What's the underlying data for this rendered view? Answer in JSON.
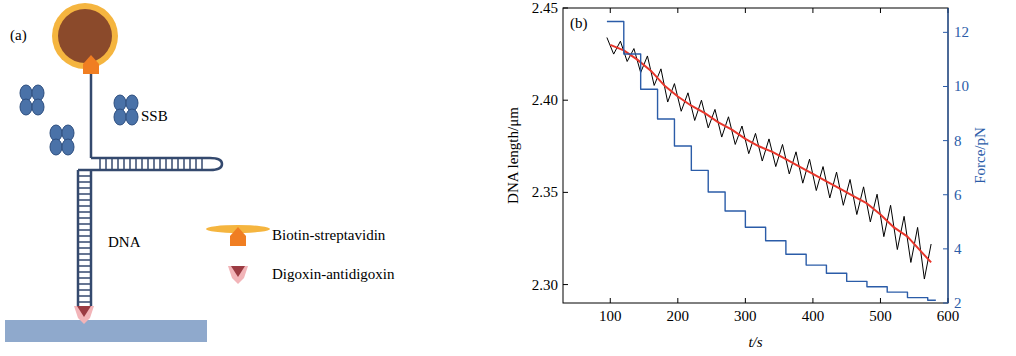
{
  "panel_a": {
    "label": "(a)",
    "ssb_label": "SSB",
    "dna_label": "DNA",
    "legend": [
      {
        "label": "Biotin-streptavidin"
      },
      {
        "label": "Digoxin-antidigoxin"
      }
    ]
  },
  "chart_data": {
    "type": "line",
    "panel_label": "(b)",
    "x_label": "t/s",
    "y_label": "DNA length/μm",
    "y2_label": "Force/pN",
    "xlim": [
      30,
      600
    ],
    "xticks": [
      100,
      200,
      300,
      400,
      500,
      600
    ],
    "ylim": [
      2.29,
      2.45
    ],
    "yticks": [
      {
        "value": 2.3,
        "label": "2.30"
      },
      2.35,
      {
        "value": 2.4,
        "label": "2.40"
      },
      2.45
    ],
    "y2lim": [
      2,
      12.9
    ],
    "y2ticks": [
      2,
      4,
      6,
      8,
      10,
      12
    ],
    "series": [
      {
        "color": "#000000",
        "x": [
          95,
          105,
          115,
          125,
          135,
          145,
          155,
          165,
          175,
          185,
          195,
          205,
          215,
          225,
          235,
          245,
          255,
          265,
          275,
          285,
          295,
          305,
          315,
          325,
          335,
          345,
          355,
          365,
          375,
          385,
          395,
          405,
          415,
          425,
          435,
          445,
          455,
          465,
          475,
          485,
          495,
          505,
          515,
          525,
          535,
          545,
          555,
          565,
          575
        ],
        "values": [
          2.434,
          2.425,
          2.432,
          2.421,
          2.428,
          2.415,
          2.424,
          2.408,
          2.417,
          2.399,
          2.409,
          2.394,
          2.404,
          2.389,
          2.4,
          2.385,
          2.395,
          2.38,
          2.391,
          2.376,
          2.386,
          2.371,
          2.382,
          2.367,
          2.379,
          2.364,
          2.376,
          2.36,
          2.372,
          2.355,
          2.368,
          2.351,
          2.364,
          2.347,
          2.361,
          2.343,
          2.357,
          2.338,
          2.353,
          2.334,
          2.349,
          2.326,
          2.343,
          2.319,
          2.337,
          2.312,
          2.331,
          2.303,
          2.322
        ]
      },
      {
        "color": "#e8362b",
        "x": [
          100,
          120,
          140,
          160,
          180,
          200,
          220,
          240,
          260,
          280,
          300,
          320,
          340,
          360,
          380,
          400,
          420,
          440,
          460,
          480,
          500,
          520,
          540,
          560,
          575
        ],
        "values": [
          2.43,
          2.427,
          2.422,
          2.416,
          2.408,
          2.402,
          2.397,
          2.393,
          2.388,
          2.384,
          2.379,
          2.375,
          2.372,
          2.368,
          2.364,
          2.36,
          2.356,
          2.352,
          2.348,
          2.344,
          2.338,
          2.331,
          2.326,
          2.318,
          2.312
        ]
      },
      {
        "color": "#2b5ca8",
        "axis": "y2",
        "line_style": "step",
        "x": [
          95,
          120,
          145,
          170,
          195,
          220,
          245,
          270,
          300,
          330,
          360,
          390,
          420,
          450,
          480,
          510,
          540,
          570,
          582
        ],
        "values": [
          12.4,
          11.2,
          9.9,
          8.8,
          7.8,
          6.9,
          6.1,
          5.4,
          4.8,
          4.3,
          3.8,
          3.4,
          3.1,
          2.8,
          2.6,
          2.4,
          2.2,
          2.1,
          2.1
        ]
      }
    ]
  }
}
